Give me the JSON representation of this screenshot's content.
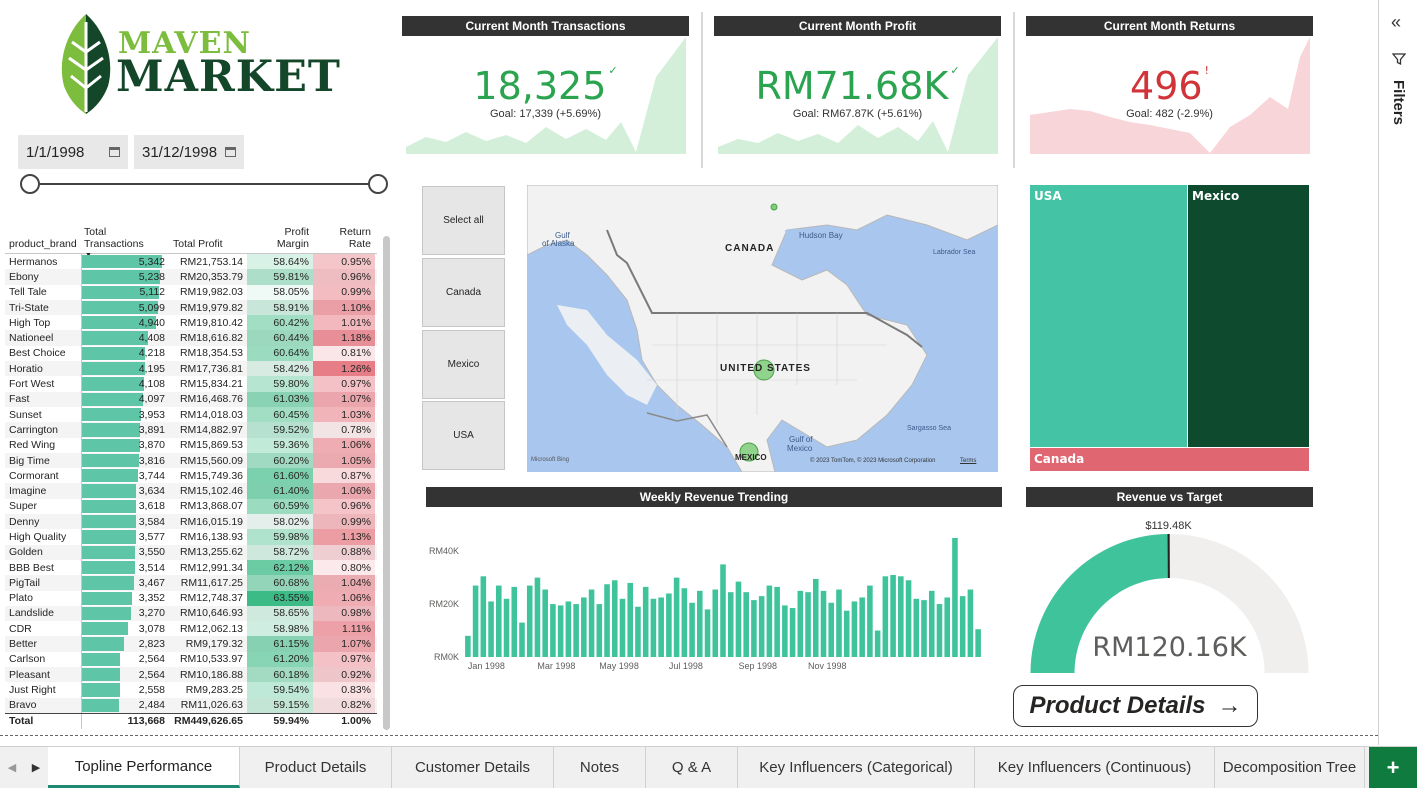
{
  "logo": {
    "word1": "MAVEN",
    "word2": "MARKET"
  },
  "date_slicer": {
    "start": "1/1/1998",
    "end": "31/12/1998"
  },
  "table": {
    "columns": [
      "product_brand",
      "Total Transactions",
      "Total Profit",
      "Profit Margin",
      "Return Rate"
    ],
    "rows": [
      [
        "Hermanos",
        "5,342",
        "RM21,753.14",
        "58.64%",
        "0.95%"
      ],
      [
        "Ebony",
        "5,238",
        "RM20,353.79",
        "59.81%",
        "0.96%"
      ],
      [
        "Tell Tale",
        "5,112",
        "RM19,982.03",
        "58.05%",
        "0.99%"
      ],
      [
        "Tri-State",
        "5,099",
        "RM19,979.82",
        "58.91%",
        "1.10%"
      ],
      [
        "High Top",
        "4,940",
        "RM19,810.42",
        "60.42%",
        "1.01%"
      ],
      [
        "Nationeel",
        "4,408",
        "RM18,616.82",
        "60.44%",
        "1.18%"
      ],
      [
        "Best Choice",
        "4,218",
        "RM18,354.53",
        "60.64%",
        "0.81%"
      ],
      [
        "Horatio",
        "4,195",
        "RM17,736.81",
        "58.42%",
        "1.26%"
      ],
      [
        "Fort West",
        "4,108",
        "RM15,834.21",
        "59.80%",
        "0.97%"
      ],
      [
        "Fast",
        "4,097",
        "RM16,468.76",
        "61.03%",
        "1.07%"
      ],
      [
        "Sunset",
        "3,953",
        "RM14,018.03",
        "60.45%",
        "1.03%"
      ],
      [
        "Carrington",
        "3,891",
        "RM14,882.97",
        "59.52%",
        "0.78%"
      ],
      [
        "Red Wing",
        "3,870",
        "RM15,869.53",
        "59.36%",
        "1.06%"
      ],
      [
        "Big Time",
        "3,816",
        "RM15,560.09",
        "60.20%",
        "1.05%"
      ],
      [
        "Cormorant",
        "3,744",
        "RM15,749.36",
        "61.60%",
        "0.87%"
      ],
      [
        "Imagine",
        "3,634",
        "RM15,102.46",
        "61.40%",
        "1.06%"
      ],
      [
        "Super",
        "3,618",
        "RM13,868.07",
        "60.59%",
        "0.96%"
      ],
      [
        "Denny",
        "3,584",
        "RM16,015.19",
        "58.02%",
        "0.99%"
      ],
      [
        "High Quality",
        "3,577",
        "RM16,138.93",
        "59.98%",
        "1.13%"
      ],
      [
        "Golden",
        "3,550",
        "RM13,255.62",
        "58.72%",
        "0.88%"
      ],
      [
        "BBB Best",
        "3,514",
        "RM12,991.34",
        "62.12%",
        "0.80%"
      ],
      [
        "PigTail",
        "3,467",
        "RM11,617.25",
        "60.68%",
        "1.04%"
      ],
      [
        "Plato",
        "3,352",
        "RM12,748.37",
        "63.55%",
        "1.06%"
      ],
      [
        "Landslide",
        "3,270",
        "RM10,646.93",
        "58.65%",
        "0.98%"
      ],
      [
        "CDR",
        "3,078",
        "RM12,062.13",
        "58.98%",
        "1.11%"
      ],
      [
        "Better",
        "2,823",
        "RM9,179.32",
        "61.15%",
        "1.07%"
      ],
      [
        "Carlson",
        "2,564",
        "RM10,533.97",
        "61.20%",
        "0.97%"
      ],
      [
        "Pleasant",
        "2,564",
        "RM10,186.88",
        "60.18%",
        "0.92%"
      ],
      [
        "Just Right",
        "2,558",
        "RM9,283.25",
        "59.54%",
        "0.83%"
      ],
      [
        "Bravo",
        "2,484",
        "RM11,026.63",
        "59.15%",
        "0.82%"
      ]
    ],
    "total": [
      "Total",
      "113,668",
      "RM449,626.65",
      "59.94%",
      "1.00%"
    ],
    "colors": {
      "bar": "#5ec6a6",
      "margin": "#2eb67d",
      "return": "#e36b76"
    }
  },
  "kpis": [
    {
      "title": "Current Month Transactions",
      "value": "18,325",
      "indicator": "✓",
      "goal": "Goal: 17,339 (+5.69%)",
      "color": "#2aa44f",
      "area": "#d3efd9"
    },
    {
      "title": "Current Month Profit",
      "value": "RM71.68K",
      "indicator": "✓",
      "goal": "Goal: RM67.87K (+5.61%)",
      "color": "#2aa44f",
      "area": "#d3efd9"
    },
    {
      "title": "Current Month Returns",
      "value": "496",
      "indicator": "!",
      "goal": "Goal: 482 (-2.9%)",
      "color": "#d13438",
      "area": "#f7d5d8"
    }
  ],
  "country_slicer": [
    "Select all",
    "Canada",
    "Mexico",
    "USA"
  ],
  "map": {
    "labels": {
      "canada": "CANADA",
      "us": "UNITED STATES",
      "mexico": "MEXICO",
      "alaska1": "Gulf",
      "alaska2": "of Alaska",
      "hudson": "Hudson Bay",
      "labrador": "Labrador Sea",
      "gulfmx1": "Gulf of",
      "gulfmx2": "Mexico",
      "sargasso": "Sargasso Sea"
    },
    "bing": "Microsoft Bing",
    "copyright": "© 2023 TomTom, © 2023 Microsoft Corporation",
    "terms": "Terms"
  },
  "treemap": {
    "usa": "USA",
    "mexico": "Mexico",
    "canada": "Canada"
  },
  "weekly": {
    "title": "Weekly Revenue Trending",
    "chart_data": {
      "type": "bar",
      "title": "Weekly Revenue Trending",
      "y_ticks": [
        "RM0K",
        "RM20K",
        "RM40K"
      ],
      "ylim": [
        0,
        48000
      ],
      "x_ticks": [
        "Jan 1998",
        "Mar 1998",
        "May 1998",
        "Jul 1998",
        "Sep 1998",
        "Nov 1998"
      ],
      "values": [
        8000,
        27000,
        30500,
        21000,
        27000,
        22000,
        26500,
        13000,
        27000,
        30000,
        25500,
        20000,
        19500,
        21000,
        20000,
        22500,
        25500,
        20000,
        27500,
        29000,
        22000,
        28000,
        19000,
        26500,
        22000,
        22500,
        24000,
        30000,
        26000,
        20500,
        25000,
        18000,
        25500,
        35000,
        24500,
        28500,
        24500,
        21500,
        23000,
        27000,
        26500,
        19500,
        18500,
        25000,
        24500,
        29500,
        25000,
        20500,
        25500,
        17500,
        21000,
        22500,
        27000,
        10000,
        30500,
        31000,
        30500,
        29000,
        22000,
        21500,
        25000,
        20000,
        22500,
        45000,
        23000,
        25500,
        10500
      ]
    }
  },
  "gauge": {
    "title": "Revenue vs Target",
    "value": "RM120.16K",
    "target_label": "$119.48K",
    "value_num": 120160,
    "target_num": 119480,
    "max_num": 240000
  },
  "product_details_button": {
    "label": "Product Details",
    "arrow": "→"
  },
  "filters": {
    "label": "Filters"
  },
  "tabs": [
    "Topline Performance",
    "Product Details",
    "Customer Details",
    "Notes",
    "Q & A",
    "Key Influencers (Categorical)",
    "Key Influencers (Continuous)",
    "Decomposition Tree"
  ],
  "add_tab": "+"
}
